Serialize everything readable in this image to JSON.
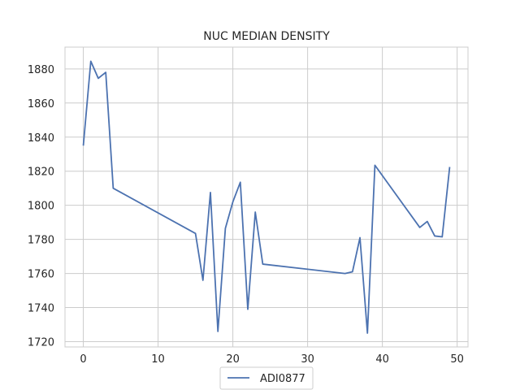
{
  "chart_data": {
    "type": "line",
    "title": "NUC MEDIAN DENSITY",
    "xlabel": "",
    "ylabel": "",
    "xlim": [
      -2.45,
      51.45
    ],
    "ylim": [
      1716.9,
      1892.8
    ],
    "xticks": [
      0,
      10,
      20,
      30,
      40,
      50
    ],
    "yticks": [
      1720,
      1740,
      1760,
      1780,
      1800,
      1820,
      1840,
      1860,
      1880
    ],
    "grid": true,
    "legend": "bottom-center",
    "series": [
      {
        "name": "ADI0877",
        "color": "#4c72b0",
        "x": [
          0,
          1,
          2,
          3,
          4,
          15,
          16,
          17,
          18,
          19,
          20,
          21,
          22,
          23,
          24,
          35,
          36,
          37,
          38,
          39,
          45,
          46,
          47,
          48,
          49
        ],
        "y": [
          1835,
          1884.5,
          1874.5,
          1878,
          1810,
          1783.5,
          1756,
          1807.5,
          1726,
          1786.5,
          1802,
          1813.5,
          1739,
          1796,
          1765.5,
          1760,
          1761,
          1781,
          1725,
          1823.5,
          1787,
          1790.5,
          1782,
          1781.5,
          1822.5
        ]
      }
    ]
  }
}
